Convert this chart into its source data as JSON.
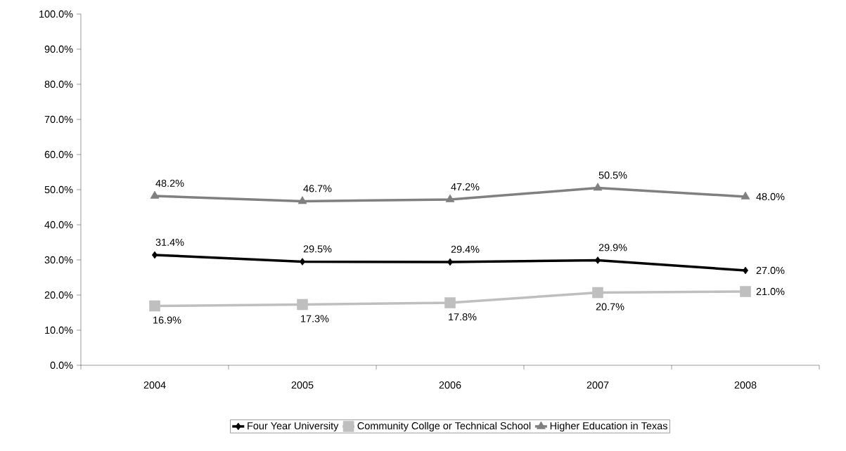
{
  "chart_data": {
    "type": "line",
    "categories": [
      "2004",
      "2005",
      "2006",
      "2007",
      "2008"
    ],
    "series": [
      {
        "name": "Four Year University",
        "color": "#000000",
        "marker": "diamond",
        "values": [
          31.4,
          29.5,
          29.4,
          29.9,
          27.0
        ],
        "value_labels": [
          "31.4%",
          "29.5%",
          "29.4%",
          "29.9%",
          "27.0%"
        ]
      },
      {
        "name": "Community Collge or Technical School",
        "color": "#bfbfbf",
        "marker": "square",
        "values": [
          16.9,
          17.3,
          17.8,
          20.7,
          21.0
        ],
        "value_labels": [
          "16.9%",
          "17.3%",
          "17.8%",
          "20.7%",
          "21.0%"
        ]
      },
      {
        "name": "Higher Education in Texas",
        "color": "#808080",
        "marker": "triangle",
        "values": [
          48.2,
          46.7,
          47.2,
          50.5,
          48.0
        ],
        "value_labels": [
          "48.2%",
          "46.7%",
          "47.2%",
          "50.5%",
          "48.0%"
        ]
      }
    ],
    "ylim": [
      0,
      100
    ],
    "yticks": [
      {
        "value": 0,
        "label": "0.0%"
      },
      {
        "value": 10,
        "label": "10.0%"
      },
      {
        "value": 20,
        "label": "20.0%"
      },
      {
        "value": 30,
        "label": "30.0%"
      },
      {
        "value": 40,
        "label": "40.0%"
      },
      {
        "value": 50,
        "label": "50.0%"
      },
      {
        "value": 60,
        "label": "60.0%"
      },
      {
        "value": 70,
        "label": "70.0%"
      },
      {
        "value": 80,
        "label": "80.0%"
      },
      {
        "value": 90,
        "label": "90.0%"
      },
      {
        "value": 100,
        "label": "100.0%"
      }
    ],
    "grid": false,
    "legend": "bottom"
  }
}
